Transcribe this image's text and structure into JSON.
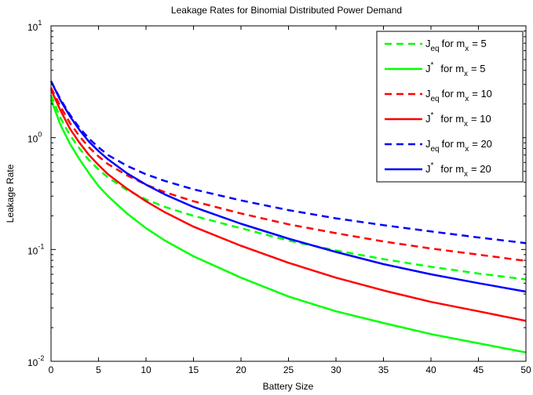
{
  "chart_data": {
    "type": "line",
    "title": "Leakage Rates for Binomial Distributed Power Demand",
    "xlabel": "Battery Size",
    "ylabel": "Leakage Rate",
    "xlim": [
      0,
      50
    ],
    "ylim": [
      0.01,
      10
    ],
    "yscale": "log",
    "grid": false,
    "legend_position": "top-right",
    "x_ticks": [
      0,
      5,
      10,
      15,
      20,
      25,
      30,
      35,
      40,
      45,
      50
    ],
    "y_ticks": [
      {
        "value": 0.01,
        "base": "10",
        "exp": "-2"
      },
      {
        "value": 0.1,
        "base": "10",
        "exp": "-1"
      },
      {
        "value": 1,
        "base": "10",
        "exp": "0"
      },
      {
        "value": 10,
        "base": "10",
        "exp": "1"
      }
    ],
    "x": [
      0,
      1,
      2,
      3,
      4,
      5,
      6,
      8,
      10,
      12,
      15,
      20,
      25,
      30,
      35,
      40,
      45,
      50
    ],
    "series": [
      {
        "name_main": "J",
        "name_sub": "eq",
        "name_sup": "",
        "name_rest": "for m",
        "name_rest_sub": "x",
        "name_value": "= 5",
        "color": "#00ff00",
        "dash": true,
        "values": [
          2.4,
          1.5,
          1.05,
          0.8,
          0.63,
          0.52,
          0.44,
          0.34,
          0.28,
          0.24,
          0.2,
          0.155,
          0.12,
          0.098,
          0.082,
          0.07,
          0.061,
          0.054
        ]
      },
      {
        "name_main": "J",
        "name_sub": "",
        "name_sup": "*",
        "name_rest": "for m",
        "name_rest_sub": "x",
        "name_value": "= 5",
        "color": "#00ff00",
        "dash": false,
        "values": [
          2.2,
          1.3,
          0.88,
          0.64,
          0.48,
          0.37,
          0.3,
          0.21,
          0.155,
          0.12,
          0.087,
          0.056,
          0.038,
          0.028,
          0.022,
          0.0175,
          0.0145,
          0.012
        ]
      },
      {
        "name_main": "J",
        "name_sub": "eq",
        "name_sup": "",
        "name_rest": "for m",
        "name_rest_sub": "x",
        "name_value": "= 10",
        "color": "#ff0000",
        "dash": true,
        "values": [
          2.8,
          1.9,
          1.35,
          1.03,
          0.82,
          0.68,
          0.58,
          0.46,
          0.38,
          0.325,
          0.27,
          0.21,
          0.168,
          0.14,
          0.118,
          0.102,
          0.09,
          0.079
        ]
      },
      {
        "name_main": "J",
        "name_sub": "",
        "name_sup": "*",
        "name_rest": "for m",
        "name_rest_sub": "x",
        "name_value": "= 10",
        "color": "#ff0000",
        "dash": false,
        "values": [
          2.7,
          1.75,
          1.2,
          0.9,
          0.7,
          0.57,
          0.47,
          0.35,
          0.27,
          0.215,
          0.16,
          0.108,
          0.076,
          0.056,
          0.043,
          0.034,
          0.028,
          0.023
        ]
      },
      {
        "name_main": "J",
        "name_sub": "eq",
        "name_sup": "",
        "name_rest": "for m",
        "name_rest_sub": "x",
        "name_value": "= 20",
        "color": "#0000ff",
        "dash": true,
        "values": [
          3.2,
          2.2,
          1.6,
          1.22,
          0.98,
          0.82,
          0.7,
          0.56,
          0.47,
          0.41,
          0.345,
          0.275,
          0.225,
          0.19,
          0.165,
          0.145,
          0.128,
          0.114
        ]
      },
      {
        "name_main": "J",
        "name_sub": "",
        "name_sup": "*",
        "name_rest": "for m",
        "name_rest_sub": "x",
        "name_value": "= 20",
        "color": "#0000ff",
        "dash": false,
        "values": [
          3.2,
          2.15,
          1.55,
          1.17,
          0.92,
          0.76,
          0.64,
          0.48,
          0.38,
          0.31,
          0.24,
          0.17,
          0.125,
          0.095,
          0.074,
          0.06,
          0.05,
          0.042
        ]
      }
    ]
  }
}
